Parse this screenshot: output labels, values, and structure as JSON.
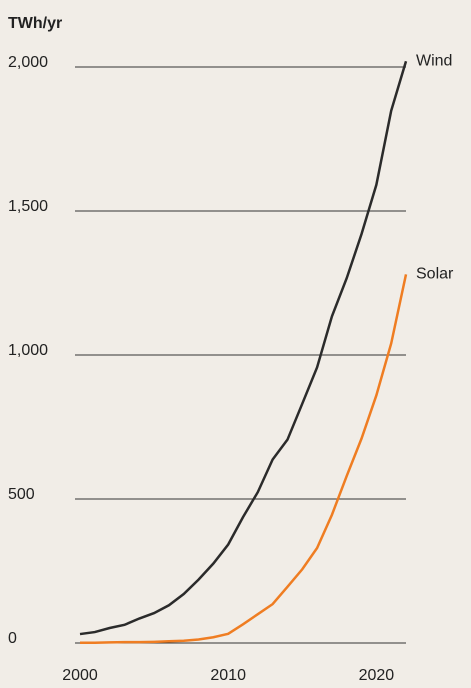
{
  "chart_data": {
    "type": "line",
    "y_label": "TWh/yr",
    "x": [
      2000,
      2001,
      2002,
      2003,
      2004,
      2005,
      2006,
      2007,
      2008,
      2009,
      2010,
      2011,
      2012,
      2013,
      2014,
      2015,
      2016,
      2017,
      2018,
      2019,
      2020,
      2021,
      2022
    ],
    "series": [
      {
        "name": "Wind",
        "color": "#2b2b2b",
        "values": [
          31,
          38,
          52,
          63,
          85,
          104,
          131,
          170,
          220,
          276,
          342,
          437,
          524,
          637,
          706,
          831,
          957,
          1134,
          1267,
          1420,
          1591,
          1848,
          2020
        ]
      },
      {
        "name": "Solar",
        "color": "#ef7d22",
        "values": [
          1,
          1,
          2,
          3,
          3,
          4,
          6,
          8,
          12,
          20,
          32,
          65,
          100,
          135,
          195,
          256,
          330,
          445,
          580,
          710,
          860,
          1040,
          1280
        ]
      }
    ],
    "xlim": [
      2000,
      2022
    ],
    "xticks": [
      2000,
      2010,
      2020
    ],
    "ylim": [
      0,
      2000
    ],
    "yticks": [
      0,
      500,
      {
        "value": 1000,
        "label": "1,000"
      },
      {
        "value": 1500,
        "label": "1,500"
      },
      {
        "value": 2000,
        "label": "2,000"
      }
    ],
    "grid": true
  }
}
